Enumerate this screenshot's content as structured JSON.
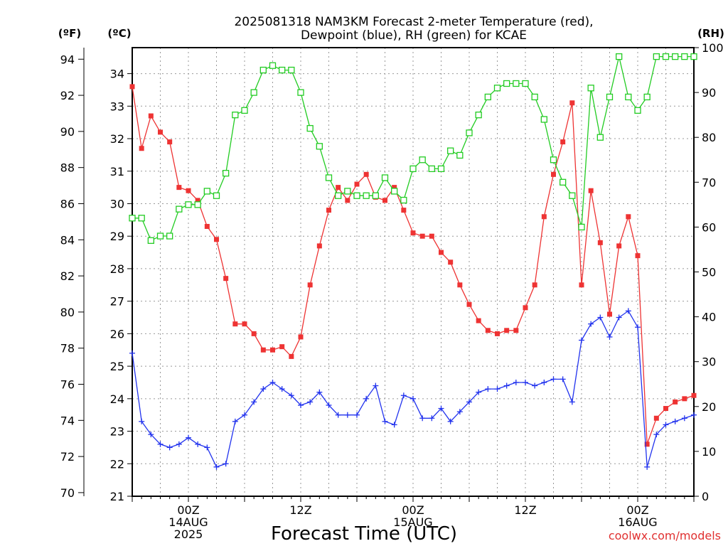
{
  "title_line1": "2025081318 NAM3KM Forecast 2-meter Temperature (red),",
  "title_line2": "Dewpoint (blue), RH (green) for KCAE",
  "unit_f": "(ºF)",
  "unit_c": "(ºC)",
  "unit_rh": "(RH)",
  "xlabel": "Forecast Time (UTC)",
  "credit": "coolwx.com/models",
  "chart_data": {
    "type": "line",
    "title": "2025081318 NAM3KM Forecast 2-meter Temperature (red), Dewpoint (blue), RH (green) for KCAE",
    "xlabel": "Forecast Time (UTC)",
    "x_unit": "forecast hour from 2025-08-13 18Z",
    "xlim": [
      0,
      60
    ],
    "x_ticks": [
      {
        "hour": 6,
        "lines": [
          "00Z",
          "14AUG",
          "2025"
        ]
      },
      {
        "hour": 18,
        "lines": [
          "12Z"
        ]
      },
      {
        "hour": 30,
        "lines": [
          "00Z",
          "15AUG"
        ]
      },
      {
        "hour": 42,
        "lines": [
          "12Z"
        ]
      },
      {
        "hour": 54,
        "lines": [
          "00Z",
          "16AUG"
        ]
      }
    ],
    "y_left_c": {
      "label": "(ºC)",
      "lim": [
        21,
        34.8
      ],
      "ticks": [
        21,
        22,
        23,
        24,
        25,
        26,
        27,
        28,
        29,
        30,
        31,
        32,
        33,
        34
      ]
    },
    "y_left_f": {
      "label": "(ºF)",
      "lim": [
        69.8,
        94.64
      ],
      "ticks": [
        70,
        72,
        74,
        76,
        78,
        80,
        82,
        84,
        86,
        88,
        90,
        92,
        94
      ]
    },
    "y_right_rh": {
      "label": "(RH)",
      "lim": [
        0,
        100
      ],
      "ticks": [
        0,
        10,
        20,
        30,
        40,
        50,
        60,
        70,
        80,
        90,
        100
      ]
    },
    "grid": true,
    "hours": [
      0,
      1,
      2,
      3,
      4,
      5,
      6,
      7,
      8,
      9,
      10,
      11,
      12,
      13,
      14,
      15,
      16,
      17,
      18,
      19,
      20,
      21,
      22,
      23,
      24,
      25,
      26,
      27,
      28,
      29,
      30,
      31,
      32,
      33,
      34,
      35,
      36,
      37,
      38,
      39,
      40,
      41,
      42,
      43,
      44,
      45,
      46,
      47,
      48,
      49,
      50,
      51,
      52,
      53,
      54,
      55,
      56,
      57,
      58,
      59,
      60
    ],
    "series": [
      {
        "axis": "c",
        "color": "#ee3333",
        "marker": "filled-square",
        "values": [
          33.6,
          31.7,
          32.7,
          32.2,
          31.9,
          30.5,
          30.4,
          30.1,
          29.3,
          28.9,
          27.7,
          26.3,
          26.3,
          26.0,
          25.5,
          25.5,
          25.6,
          25.3,
          25.9,
          27.5,
          28.7,
          29.8,
          30.5,
          30.1,
          30.6,
          30.9,
          30.2,
          30.1,
          30.5,
          29.8,
          29.1,
          29.0,
          29.0,
          28.5,
          28.2,
          27.5,
          26.9,
          26.4,
          26.1,
          26.0,
          26.1,
          26.1,
          26.8,
          27.5,
          29.6,
          30.9,
          31.9,
          33.1,
          27.5,
          30.4,
          28.8,
          26.6,
          28.7,
          29.6,
          28.4,
          22.6,
          23.4,
          23.7,
          23.9,
          24.0,
          24.1
        ]
      },
      {
        "axis": "c",
        "color": "#2233ee",
        "marker": "plus",
        "values": [
          25.4,
          23.3,
          22.9,
          22.6,
          22.5,
          22.6,
          22.8,
          22.6,
          22.5,
          21.9,
          22.0,
          23.3,
          23.5,
          23.9,
          24.3,
          24.5,
          24.3,
          24.1,
          23.8,
          23.9,
          24.2,
          23.8,
          23.5,
          23.5,
          23.5,
          24.0,
          24.4,
          23.3,
          23.2,
          24.1,
          24.0,
          23.4,
          23.4,
          23.7,
          23.3,
          23.6,
          23.9,
          24.2,
          24.3,
          24.3,
          24.4,
          24.5,
          24.5,
          24.4,
          24.5,
          24.6,
          24.6,
          23.9,
          25.8,
          26.3,
          26.5,
          25.9,
          26.5,
          26.7,
          26.2,
          21.9,
          22.9,
          23.2,
          23.3,
          23.4,
          23.5
        ]
      },
      {
        "axis": "rh",
        "color": "#22cc22",
        "marker": "open-square",
        "values": [
          62,
          62,
          57,
          58,
          58,
          64,
          65,
          65,
          68,
          67,
          72,
          85,
          86,
          90,
          95,
          96,
          95,
          95,
          90,
          82,
          78,
          71,
          67,
          68,
          67,
          67,
          67,
          71,
          68,
          66,
          73,
          75,
          73,
          73,
          77,
          76,
          81,
          85,
          89,
          91,
          92,
          92,
          92,
          89,
          84,
          75,
          70,
          67,
          60,
          91,
          80,
          89,
          98,
          89,
          86,
          89,
          98,
          98,
          98,
          98,
          98
        ]
      }
    ]
  }
}
